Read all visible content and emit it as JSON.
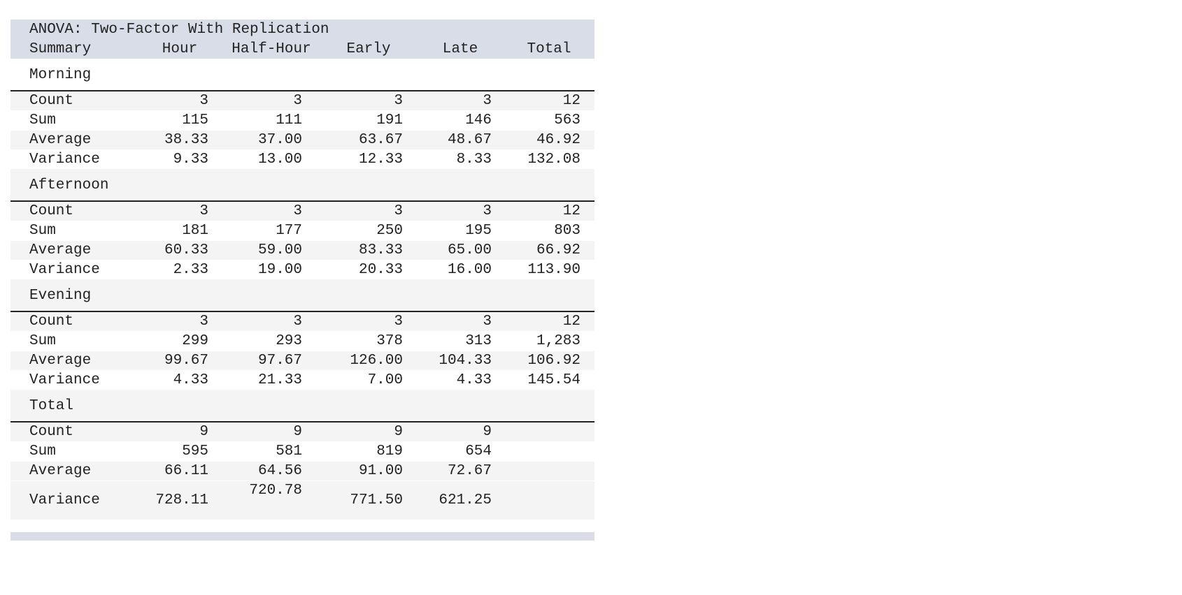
{
  "title": "ANOVA: Two-Factor With Replication",
  "header": [
    "Summary",
    "Hour",
    "Half-Hour",
    "Early",
    "Late",
    "Total"
  ],
  "groups": [
    {
      "label": "Morning",
      "rows": [
        [
          "Count",
          "3",
          "3",
          "3",
          "3",
          "12"
        ],
        [
          "Sum",
          "115",
          "111",
          "191",
          "146",
          "563"
        ],
        [
          "Average",
          "38.33",
          "37.00",
          "63.67",
          "48.67",
          "46.92"
        ],
        [
          "Variance",
          "9.33",
          "13.00",
          "12.33",
          "8.33",
          "132.08"
        ]
      ]
    },
    {
      "label": "Afternoon",
      "rows": [
        [
          "Count",
          "3",
          "3",
          "3",
          "3",
          "12"
        ],
        [
          "Sum",
          "181",
          "177",
          "250",
          "195",
          "803"
        ],
        [
          "Average",
          "60.33",
          "59.00",
          "83.33",
          "65.00",
          "66.92"
        ],
        [
          "Variance",
          "2.33",
          "19.00",
          "20.33",
          "16.00",
          "113.90"
        ]
      ]
    },
    {
      "label": "Evening",
      "rows": [
        [
          "Count",
          "3",
          "3",
          "3",
          "3",
          "12"
        ],
        [
          "Sum",
          "299",
          "293",
          "378",
          "313",
          "1,283"
        ],
        [
          "Average",
          "99.67",
          "97.67",
          "126.00",
          "104.33",
          "106.92"
        ],
        [
          "Variance",
          "4.33",
          "21.33",
          "7.00",
          "4.33",
          "145.54"
        ]
      ]
    },
    {
      "label": "Total",
      "rows": [
        [
          "Count",
          "9",
          "9",
          "9",
          "9"
        ],
        [
          "Sum",
          "595",
          "581",
          "819",
          "654"
        ],
        [
          "Average",
          "66.11",
          "64.56",
          "91.00",
          "72.67"
        ],
        [
          "Variance",
          "728.11",
          "720.78",
          "771.50",
          "621.25"
        ]
      ]
    }
  ]
}
